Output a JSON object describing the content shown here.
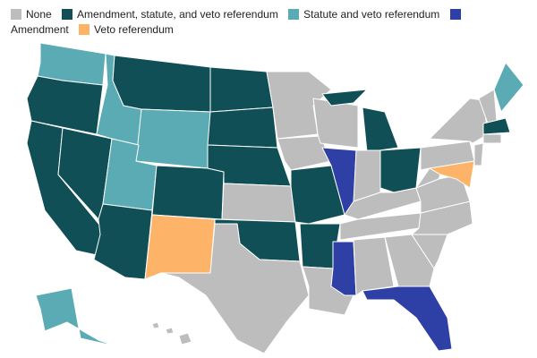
{
  "legend": [
    {
      "label": "None",
      "color": "#bdbdbd"
    },
    {
      "label": "Amendment, statute, and veto referendum",
      "color": "#0f4f55"
    },
    {
      "label": "Statute and veto referendum",
      "color": "#5aabb4"
    },
    {
      "label": "Amendment",
      "color": "#2e3fa6"
    },
    {
      "label": "Veto referendum",
      "color": "#fdb468"
    }
  ]
}
